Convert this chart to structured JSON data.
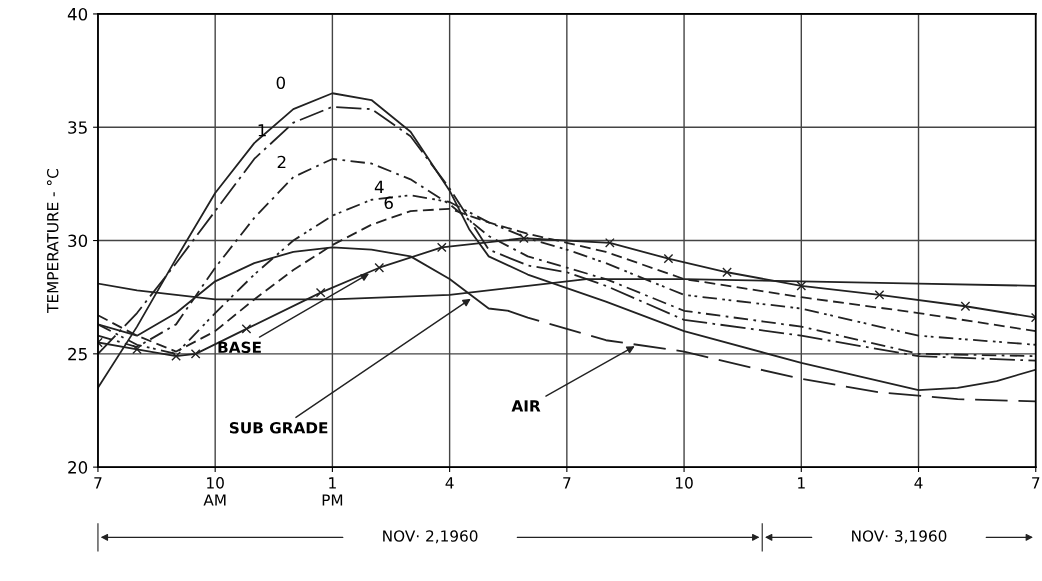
{
  "chart_data": {
    "type": "line",
    "ylabel": "TEMPERATURE - °C",
    "xlim": [
      "1960-11-02T07:00",
      "1960-11-03T07:00"
    ],
    "ylim": [
      20,
      40
    ],
    "xticks": [
      {
        "value": "1960-11-02T07:00",
        "label": "7"
      },
      {
        "value": "1960-11-02T10:00",
        "label": "10\nAM"
      },
      {
        "value": "1960-11-02T13:00",
        "label": "1\nPM"
      },
      {
        "value": "1960-11-02T16:00",
        "label": "4"
      },
      {
        "value": "1960-11-02T19:00",
        "label": "7"
      },
      {
        "value": "1960-11-02T22:00",
        "label": "10"
      },
      {
        "value": "1960-11-03T01:00",
        "label": "1"
      },
      {
        "value": "1960-11-03T04:00",
        "label": "4"
      },
      {
        "value": "1960-11-03T07:00",
        "label": "7"
      }
    ],
    "yticks": [
      20,
      25,
      30,
      35,
      40
    ],
    "grid": true,
    "series": [
      {
        "color": "#222222",
        "line_style": "solid",
        "x": [
          "1960-11-02T07:00",
          "1960-11-02T08:00",
          "1960-11-02T09:00",
          "1960-11-02T10:00",
          "1960-11-02T11:00",
          "1960-11-02T12:00",
          "1960-11-02T13:00",
          "1960-11-02T14:00",
          "1960-11-02T15:00",
          "1960-11-02T16:00",
          "1960-11-02T16:30",
          "1960-11-02T17:00",
          "1960-11-02T18:00",
          "1960-11-02T19:00",
          "1960-11-02T20:00",
          "1960-11-02T22:00",
          "1960-11-03T01:00",
          "1960-11-03T04:00",
          "1960-11-03T05:00",
          "1960-11-03T06:00",
          "1960-11-03T07:00"
        ],
        "values": [
          23.5,
          26.2,
          29.2,
          32.1,
          34.3,
          35.8,
          36.5,
          36.2,
          34.8,
          32.2,
          30.5,
          29.3,
          28.5,
          27.9,
          27.3,
          26.0,
          24.6,
          23.4,
          23.5,
          23.8,
          24.3
        ]
      },
      {
        "color": "#222222",
        "line_style": "longdashdot",
        "x": [
          "1960-11-02T07:00",
          "1960-11-02T08:00",
          "1960-11-02T09:00",
          "1960-11-02T10:00",
          "1960-11-02T11:00",
          "1960-11-02T12:00",
          "1960-11-02T13:00",
          "1960-11-02T14:00",
          "1960-11-02T15:00",
          "1960-11-02T16:00",
          "1960-11-02T17:00",
          "1960-11-02T18:00",
          "1960-11-02T19:00",
          "1960-11-02T20:00",
          "1960-11-02T22:00",
          "1960-11-03T01:00",
          "1960-11-03T04:00",
          "1960-11-03T07:00"
        ],
        "values": [
          25.0,
          26.8,
          29.0,
          31.3,
          33.6,
          35.2,
          35.9,
          35.8,
          34.6,
          32.3,
          29.6,
          28.9,
          28.6,
          28.0,
          26.5,
          25.8,
          24.9,
          24.7
        ]
      },
      {
        "color": "#222222",
        "line_style": "dashdot",
        "x": [
          "1960-11-02T07:00",
          "1960-11-02T08:00",
          "1960-11-02T09:00",
          "1960-11-02T10:00",
          "1960-11-02T11:00",
          "1960-11-02T12:00",
          "1960-11-02T13:00",
          "1960-11-02T14:00",
          "1960-11-02T15:00",
          "1960-11-02T16:00",
          "1960-11-02T17:00",
          "1960-11-02T18:00",
          "1960-11-02T19:00",
          "1960-11-02T20:00",
          "1960-11-02T22:00",
          "1960-11-03T01:00",
          "1960-11-03T04:00",
          "1960-11-03T07:00"
        ],
        "values": [
          25.8,
          25.3,
          26.3,
          28.8,
          31.0,
          32.8,
          33.6,
          33.4,
          32.7,
          31.6,
          30.2,
          29.3,
          28.8,
          28.3,
          26.9,
          26.2,
          25.0,
          24.9
        ]
      },
      {
        "color": "#222222",
        "line_style": "dashdotdot",
        "x": [
          "1960-11-02T07:00",
          "1960-11-02T08:00",
          "1960-11-02T09:00",
          "1960-11-02T10:00",
          "1960-11-02T11:00",
          "1960-11-02T12:00",
          "1960-11-02T13:00",
          "1960-11-02T14:00",
          "1960-11-02T15:00",
          "1960-11-02T16:00",
          "1960-11-02T17:00",
          "1960-11-02T18:00",
          "1960-11-02T19:00",
          "1960-11-02T20:00",
          "1960-11-02T22:00",
          "1960-11-03T01:00",
          "1960-11-03T04:00",
          "1960-11-03T07:00"
        ],
        "values": [
          26.3,
          25.4,
          25.0,
          26.8,
          28.5,
          30.0,
          31.1,
          31.8,
          32.0,
          31.7,
          30.8,
          30.1,
          29.6,
          29.0,
          27.6,
          27.0,
          25.8,
          25.4
        ]
      },
      {
        "color": "#222222",
        "line_style": "dashed",
        "x": [
          "1960-11-02T07:00",
          "1960-11-02T08:00",
          "1960-11-02T09:00",
          "1960-11-02T10:00",
          "1960-11-02T11:00",
          "1960-11-02T12:00",
          "1960-11-02T13:00",
          "1960-11-02T14:00",
          "1960-11-02T15:00",
          "1960-11-02T16:00",
          "1960-11-02T17:00",
          "1960-11-02T18:00",
          "1960-11-02T19:00",
          "1960-11-02T20:00",
          "1960-11-02T22:00",
          "1960-11-03T01:00",
          "1960-11-03T04:00",
          "1960-11-03T07:00"
        ],
        "values": [
          26.7,
          25.8,
          25.1,
          26.0,
          27.4,
          28.7,
          29.8,
          30.7,
          31.3,
          31.4,
          30.8,
          30.3,
          29.9,
          29.5,
          28.3,
          27.5,
          26.8,
          26.0
        ]
      },
      {
        "color": "#222222",
        "line_style": "solid",
        "marker": "cross",
        "x": [
          "1960-11-02T07:00",
          "1960-11-02T08:00",
          "1960-11-02T09:00",
          "1960-11-02T09:30",
          "1960-11-02T10:48",
          "1960-11-02T12:42",
          "1960-11-02T14:12",
          "1960-11-02T15:48",
          "1960-11-02T17:54",
          "1960-11-02T20:06",
          "1960-11-02T21:36",
          "1960-11-02T23:06",
          "1960-11-03T01:00",
          "1960-11-03T03:00",
          "1960-11-03T05:12",
          "1960-11-03T07:00"
        ],
        "values": [
          25.5,
          25.2,
          24.9,
          25.0,
          26.1,
          27.7,
          28.8,
          29.7,
          30.1,
          29.9,
          29.2,
          28.6,
          28.0,
          27.6,
          27.1,
          26.6
        ]
      },
      {
        "color": "#222222",
        "line_style": "solid",
        "x": [
          "1960-11-02T07:00",
          "1960-11-02T08:00",
          "1960-11-02T10:00",
          "1960-11-02T13:00",
          "1960-11-02T16:00",
          "1960-11-02T18:00",
          "1960-11-02T19:30",
          "1960-11-02T22:00",
          "1960-11-03T01:00",
          "1960-11-03T04:00",
          "1960-11-03T07:00"
        ],
        "values": [
          28.1,
          27.8,
          27.4,
          27.4,
          27.6,
          28.0,
          28.3,
          28.3,
          28.2,
          28.1,
          28.0
        ]
      },
      {
        "color": "#222222",
        "line_style": "solid",
        "x": [
          "1960-11-02T07:00",
          "1960-11-02T08:00",
          "1960-11-02T09:00",
          "1960-11-02T10:00",
          "1960-11-02T11:00",
          "1960-11-02T12:00",
          "1960-11-02T13:00",
          "1960-11-02T14:00",
          "1960-11-02T15:00",
          "1960-11-02T16:00",
          "1960-11-02T17:00",
          "1960-11-02T17:30"
        ],
        "values": [
          26.3,
          25.8,
          26.8,
          28.2,
          29.0,
          29.5,
          29.7,
          29.6,
          29.3,
          28.3,
          27.0,
          26.9
        ]
      },
      {
        "color": "#222222",
        "line_style": "longdashed",
        "x": [
          "1960-11-02T17:30",
          "1960-11-02T18:00",
          "1960-11-02T19:00",
          "1960-11-02T20:00",
          "1960-11-02T22:00",
          "1960-11-02T23:42",
          "1960-11-03T01:00",
          "1960-11-03T03:00",
          "1960-11-03T05:00",
          "1960-11-03T07:00"
        ],
        "values": [
          26.9,
          26.6,
          26.1,
          25.6,
          25.1,
          24.4,
          23.9,
          23.3,
          23.0,
          22.9
        ]
      }
    ],
    "annotations": [
      "0",
      "1",
      "2",
      "4",
      "6",
      {
        "text": "BASE",
        "x": "1960-11-02T14:00",
        "y": 28.6
      },
      {
        "text": "SUB GRADE",
        "x": "1960-11-02T16:36",
        "y": 27.5
      },
      {
        "text": "AIR",
        "x": "1960-11-02T20:48",
        "y": 25.4
      },
      "NOV· 2,1960",
      "NOV· 3,1960"
    ]
  }
}
